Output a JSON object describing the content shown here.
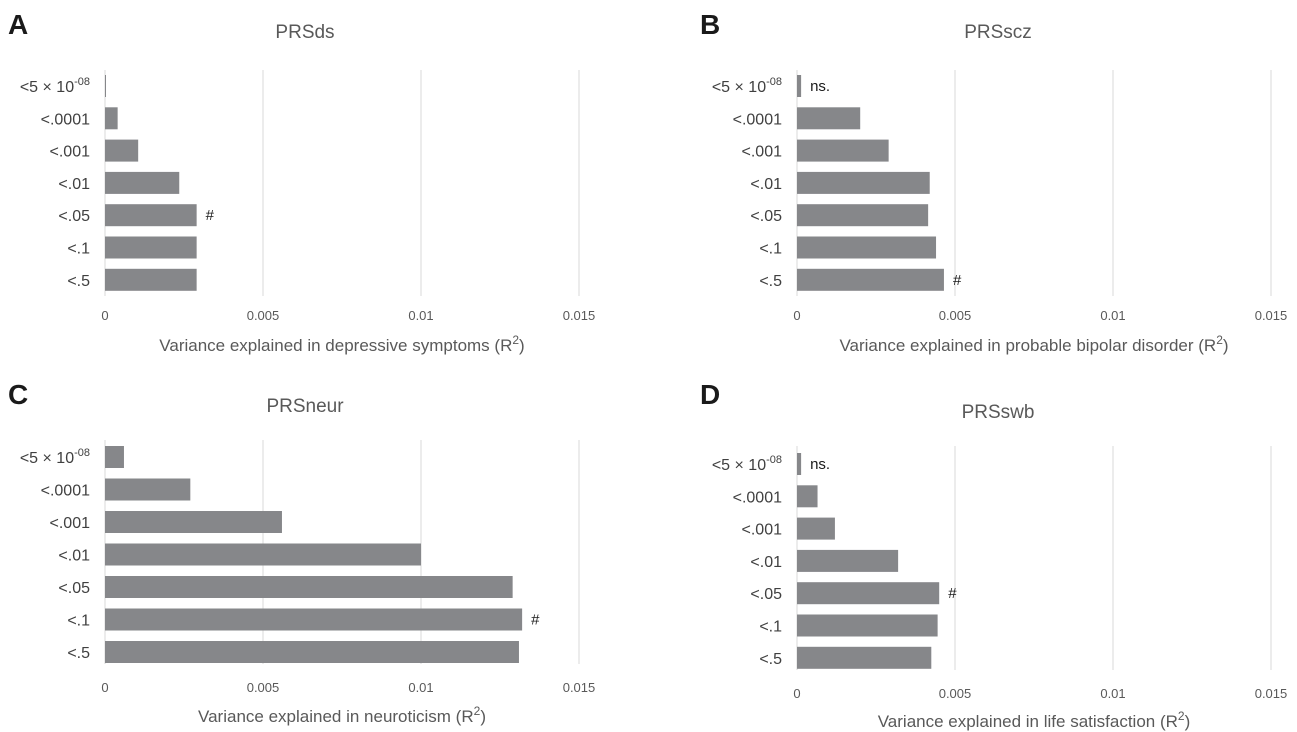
{
  "chart_data": [
    {
      "panel": "A",
      "type": "bar",
      "orientation": "horizontal",
      "title": "PRSds",
      "categories": [
        "<5 × 10",
        "<.0001",
        "<.001",
        "<.01",
        "<.05",
        "<.1",
        "<.5"
      ],
      "first_category_superscript": "-08",
      "values": [
        2e-05,
        0.0004,
        0.00105,
        0.00235,
        0.0029,
        0.0029,
        0.0029
      ],
      "annotations": [
        {
          "category": "<.05",
          "text": "#"
        }
      ],
      "xlabel": "Variance explained in depressive symptoms (R",
      "xlabel_superscript": "2",
      "xlabel_suffix": ")",
      "xlim": [
        0,
        0.015
      ],
      "xticks": [
        "0",
        "0.005",
        "0.01",
        "0.015"
      ],
      "grid": true,
      "bar_color": "#86878a"
    },
    {
      "panel": "B",
      "type": "bar",
      "orientation": "horizontal",
      "title": "PRSscz",
      "categories": [
        "<5 × 10",
        "<.0001",
        "<.001",
        "<.01",
        "<.05",
        "<.1",
        "<.5"
      ],
      "first_category_superscript": "-08",
      "values": [
        0.00013,
        0.002,
        0.0029,
        0.0042,
        0.00415,
        0.0044,
        0.00465
      ],
      "annotations": [
        {
          "category": "<5 × 10",
          "text": "ns."
        },
        {
          "category": "<.5",
          "text": "#"
        }
      ],
      "xlabel": "Variance explained in probable bipolar disorder (R",
      "xlabel_superscript": "2",
      "xlabel_suffix": ")",
      "xlim": [
        0,
        0.015
      ],
      "xticks": [
        "0",
        "0.005",
        "0.01",
        "0.015"
      ],
      "grid": true,
      "bar_color": "#86878a"
    },
    {
      "panel": "C",
      "type": "bar",
      "orientation": "horizontal",
      "title": "PRSneur",
      "categories": [
        "<5 × 10",
        "<.0001",
        "<.001",
        "<.01",
        "<.05",
        "<.1",
        "<.5"
      ],
      "first_category_superscript": "-08",
      "values": [
        0.0006,
        0.0027,
        0.0056,
        0.01,
        0.0129,
        0.0132,
        0.0131
      ],
      "annotations": [
        {
          "category": "<.1",
          "text": "#"
        }
      ],
      "xlabel": "Variance explained in neuroticism (R",
      "xlabel_superscript": "2",
      "xlabel_suffix": ")",
      "xlim": [
        0,
        0.015
      ],
      "xticks": [
        "0",
        "0.005",
        "0.01",
        "0.015"
      ],
      "grid": true,
      "bar_color": "#86878a"
    },
    {
      "panel": "D",
      "type": "bar",
      "orientation": "horizontal",
      "title": "PRSswb",
      "categories": [
        "<5 × 10",
        "<.0001",
        "<.001",
        "<.01",
        "<.05",
        "<.1",
        "<.5"
      ],
      "first_category_superscript": "-08",
      "values": [
        0.00013,
        0.00065,
        0.0012,
        0.0032,
        0.0045,
        0.00445,
        0.00425
      ],
      "annotations": [
        {
          "category": "<5 × 10",
          "text": "ns."
        },
        {
          "category": "<.05",
          "text": "#"
        }
      ],
      "xlabel": "Variance explained in life satisfaction (R",
      "xlabel_superscript": "2",
      "xlabel_suffix": ")",
      "xlim": [
        0,
        0.015
      ],
      "xticks": [
        "0",
        "0.005",
        "0.01",
        "0.015"
      ],
      "grid": true,
      "bar_color": "#86878a"
    }
  ]
}
